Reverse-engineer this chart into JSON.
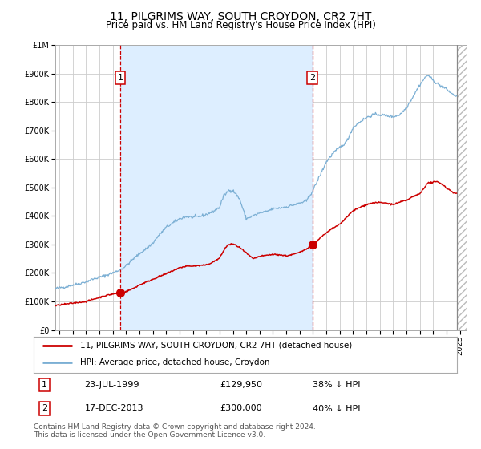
{
  "title": "11, PILGRIMS WAY, SOUTH CROYDON, CR2 7HT",
  "subtitle": "Price paid vs. HM Land Registry's House Price Index (HPI)",
  "legend_line1": "11, PILGRIMS WAY, SOUTH CROYDON, CR2 7HT (detached house)",
  "legend_line2": "HPI: Average price, detached house, Croydon",
  "footer": "Contains HM Land Registry data © Crown copyright and database right 2024.\nThis data is licensed under the Open Government Licence v3.0.",
  "marker1": {
    "date_num": 1999.56,
    "price": 129950,
    "label": "1",
    "text": "23-JUL-1999",
    "price_str": "£129,950",
    "hpi_str": "38% ↓ HPI"
  },
  "marker2": {
    "date_num": 2013.96,
    "price": 300000,
    "label": "2",
    "text": "17-DEC-2013",
    "price_str": "£300,000",
    "hpi_str": "40% ↓ HPI"
  },
  "red_line_color": "#cc0000",
  "blue_line_color": "#7bafd4",
  "plot_bg": "#ffffff",
  "shade_color": "#ddeeff",
  "grid_color": "#cccccc",
  "ylim": [
    0,
    1000000
  ],
  "xlim_start": 1994.7,
  "xlim_end": 2025.5,
  "hatch_start": 2024.75,
  "vline_color": "#cc0000",
  "vline_right_color": "#888888",
  "title_fontsize": 10,
  "subtitle_fontsize": 8.5,
  "tick_fontsize": 7,
  "legend_fontsize": 7.5,
  "table_fontsize": 8,
  "footer_fontsize": 6.5
}
